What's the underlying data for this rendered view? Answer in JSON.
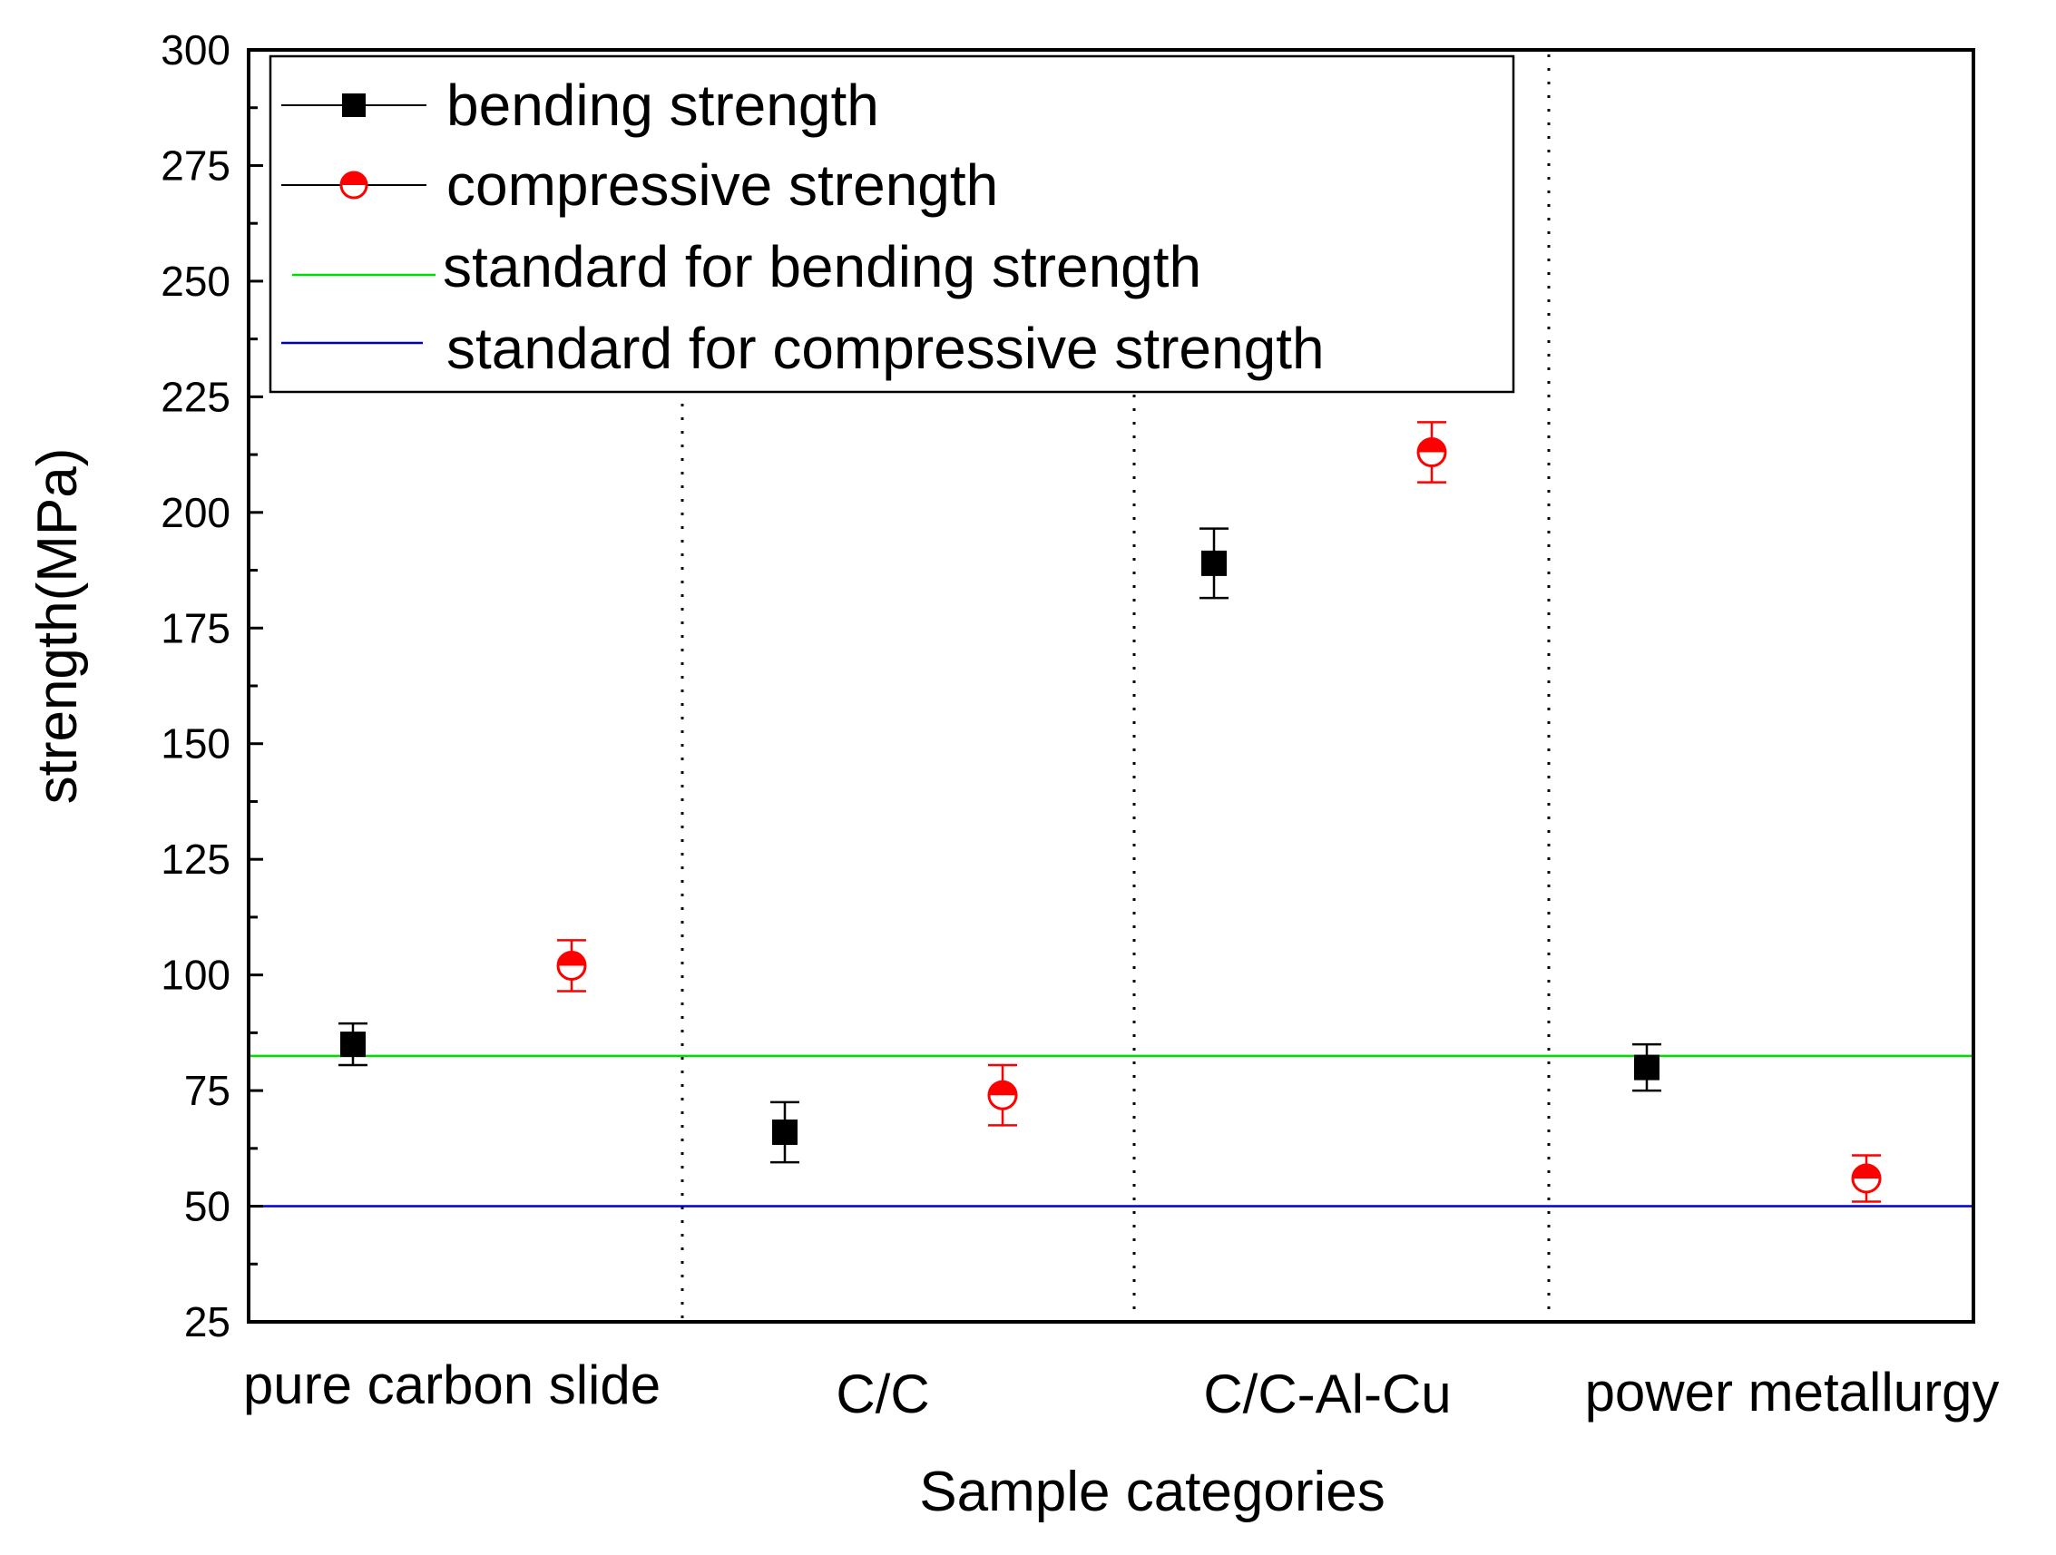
{
  "chart_data": {
    "type": "scatter",
    "title": "",
    "xlabel": "Sample categories",
    "ylabel": "strength(MPa)",
    "ylim": [
      25,
      300
    ],
    "yticks": [
      25,
      50,
      75,
      100,
      125,
      150,
      175,
      200,
      225,
      250,
      275,
      300
    ],
    "categories": [
      "pure carbon slide",
      "C/C",
      "C/C-Al-Cu",
      "power metallurgy"
    ],
    "grid": false,
    "category_separators": "dotted vertical lines between categories",
    "series": [
      {
        "name": "bending strength",
        "marker": "filled-square",
        "color": "#000000",
        "values": [
          85,
          66,
          189,
          80
        ],
        "error": [
          4.5,
          6.5,
          7.5,
          5
        ]
      },
      {
        "name": "compressive strength",
        "marker": "half-filled-circle",
        "color": "#ff0000",
        "values": [
          102,
          74,
          213,
          56
        ],
        "error": [
          5.5,
          6.5,
          6.5,
          5
        ]
      }
    ],
    "reference_lines": [
      {
        "name": "standard for bending strength",
        "value": 82.5,
        "color": "#00dd00"
      },
      {
        "name": "standard for compressive strength",
        "value": 50,
        "color": "#0000cc"
      }
    ],
    "legend": {
      "position": "top-left",
      "entries": [
        "bending strength",
        "compressive strength",
        "standard for bending strength",
        "standard for compressive strength"
      ]
    }
  }
}
